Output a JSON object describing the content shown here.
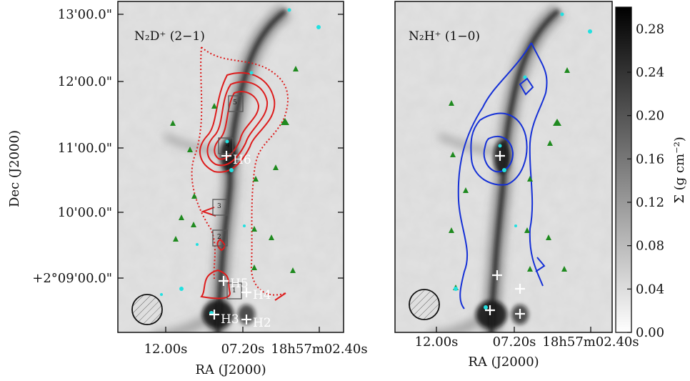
{
  "chart_data": [
    {
      "type": "image",
      "panel": "left",
      "title": "N₂D⁺ (2−1)",
      "xlabel": "RA (J2000)",
      "ylabel": "Dec (J2000)",
      "x_ticks": [
        "12.00s",
        "07.20s",
        "18h57m02.40s"
      ],
      "y_ticks": [
        "13'00.0\"",
        "12'00.0\"",
        "11'00.0\"",
        "10'00.0\"",
        "+2°09'00.0\""
      ],
      "contour_color": "#dd1c1c",
      "source_labels": [
        {
          "name": "H6",
          "ra_s": 7.2,
          "dec_s": 53
        },
        {
          "name": "H5",
          "ra_s": 7.2,
          "dec_s": -4
        },
        {
          "name": "H4",
          "ra_s": 5.8,
          "dec_s": -18
        },
        {
          "name": "H3",
          "ra_s": 7.8,
          "dec_s": -40
        },
        {
          "name": "H2",
          "ra_s": 5.5,
          "dec_s": -42
        }
      ],
      "boxes": [
        "1",
        "2",
        "3",
        "4",
        "5"
      ],
      "beam": "circle"
    },
    {
      "type": "image",
      "panel": "right",
      "title": "N₂H⁺ (1−0)",
      "xlabel": "RA (J2000)",
      "x_ticks": [
        "12.00s",
        "07.20s",
        "18h57m02.40s"
      ],
      "contour_color": "#1530d6",
      "colorbar": {
        "label": "Σ  (g cm⁻²)",
        "ticks": [
          "0.00",
          "0.04",
          "0.08",
          "0.12",
          "0.16",
          "0.20",
          "0.24",
          "0.28"
        ],
        "range": [
          0.0,
          0.3
        ]
      },
      "beam": "circle"
    }
  ]
}
